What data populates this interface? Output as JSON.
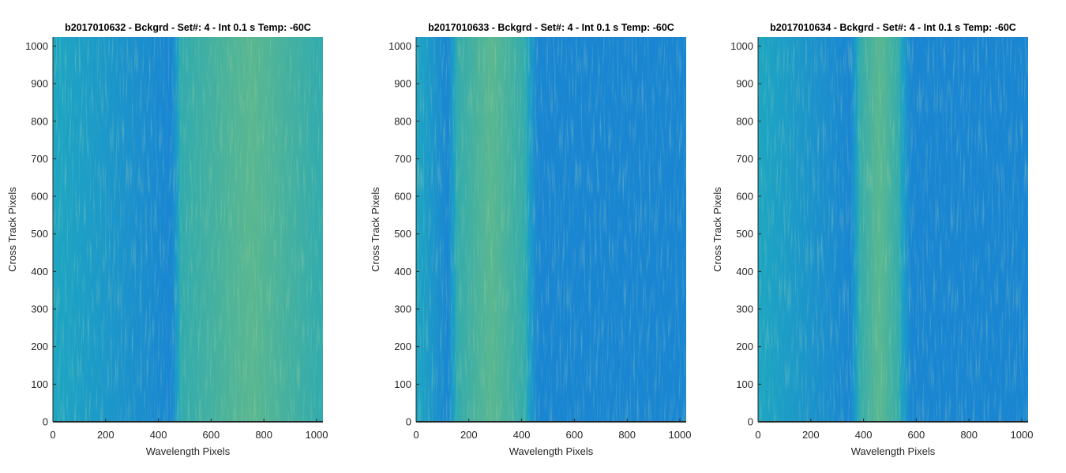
{
  "chart_data": [
    {
      "type": "heatmap",
      "title": "b2017010632 - Bckgrd - Set#: 4 - Int 0.1 s Temp: -60C",
      "xlabel": "Wavelength Pixels",
      "ylabel": "Cross Track Pixels",
      "xlim": [
        0,
        1024
      ],
      "ylim": [
        0,
        1024
      ],
      "xticks": [
        0,
        200,
        400,
        600,
        800,
        1000
      ],
      "yticks": [
        0,
        100,
        200,
        300,
        400,
        500,
        600,
        700,
        800,
        900,
        1000
      ],
      "colormap": "parula",
      "bright_band_wavelength": [
        480,
        1024
      ]
    },
    {
      "type": "heatmap",
      "title": "b2017010633 - Bckgrd - Set#: 4 - Int 0.1 s Temp: -60C",
      "xlabel": "Wavelength Pixels",
      "ylabel": "Cross Track Pixels",
      "xlim": [
        0,
        1024
      ],
      "ylim": [
        0,
        1024
      ],
      "xticks": [
        0,
        200,
        400,
        600,
        800,
        1000
      ],
      "yticks": [
        0,
        100,
        200,
        300,
        400,
        500,
        600,
        700,
        800,
        900,
        1000
      ],
      "colormap": "parula",
      "bright_band_wavelength": [
        150,
        420
      ]
    },
    {
      "type": "heatmap",
      "title": "b2017010634 - Bckgrd - Set#: 4 - Int 0.1 s Temp: -60C",
      "xlabel": "Wavelength Pixels",
      "ylabel": "Cross Track Pixels",
      "xlim": [
        0,
        1024
      ],
      "ylim": [
        0,
        1024
      ],
      "xticks": [
        0,
        200,
        400,
        600,
        800,
        1000
      ],
      "yticks": [
        0,
        100,
        200,
        300,
        400,
        500,
        600,
        700,
        800,
        900,
        1000
      ],
      "colormap": "parula",
      "bright_band_wavelength": [
        380,
        540
      ]
    }
  ],
  "colors": {
    "low": "#1a86d2",
    "mid": "#1ea6c2",
    "high": "#8cc35a"
  }
}
